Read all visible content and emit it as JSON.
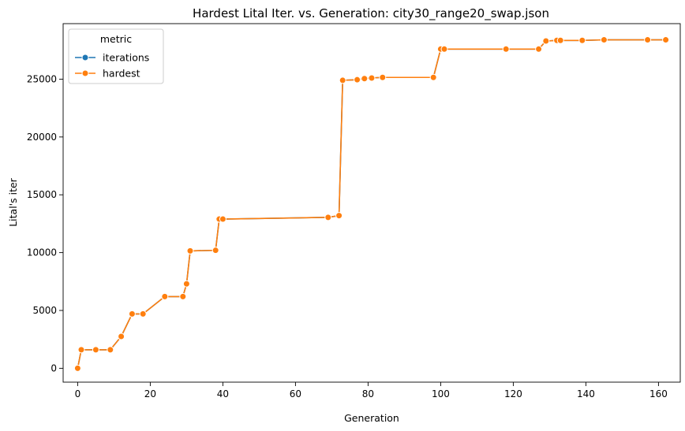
{
  "chart_data": {
    "type": "line",
    "title": "Hardest Lital Iter. vs. Generation: city30_range20_swap.json",
    "xlabel": "Generation",
    "ylabel": "Lital's iter",
    "xlim": [
      -4,
      166
    ],
    "ylim": [
      -1200,
      29800
    ],
    "xticks": [
      0,
      20,
      40,
      60,
      80,
      100,
      120,
      140,
      160
    ],
    "yticks": [
      0,
      5000,
      10000,
      15000,
      20000,
      25000
    ],
    "grid": false,
    "legend": {
      "title": "metric",
      "position": "top-left"
    },
    "series": [
      {
        "name": "iterations",
        "color": "#1f77b4",
        "x": [
          0,
          1,
          5,
          9,
          12,
          15,
          18,
          24,
          29,
          30,
          31,
          38,
          39,
          40,
          69,
          72,
          73,
          77,
          79,
          81,
          84,
          98,
          100,
          101,
          118,
          127,
          129,
          132,
          133,
          139,
          145,
          157,
          162
        ],
        "y": [
          0,
          1600,
          1600,
          1600,
          2750,
          4700,
          4700,
          6200,
          6200,
          7300,
          10150,
          10200,
          12900,
          12900,
          13050,
          13200,
          24900,
          24950,
          25050,
          25100,
          25150,
          25150,
          27600,
          27600,
          27600,
          27600,
          28300,
          28350,
          28350,
          28350,
          28400,
          28400,
          28400
        ]
      },
      {
        "name": "hardest",
        "color": "#ff7f0e",
        "x": [
          0,
          1,
          5,
          9,
          12,
          15,
          18,
          24,
          29,
          30,
          31,
          38,
          39,
          40,
          69,
          72,
          73,
          77,
          79,
          81,
          84,
          98,
          100,
          101,
          118,
          127,
          129,
          132,
          133,
          139,
          145,
          157,
          162
        ],
        "y": [
          0,
          1600,
          1600,
          1600,
          2750,
          4700,
          4700,
          6200,
          6200,
          7300,
          10150,
          10200,
          12900,
          12900,
          13050,
          13200,
          24900,
          24950,
          25050,
          25100,
          25150,
          25150,
          27600,
          27600,
          27600,
          27600,
          28300,
          28350,
          28350,
          28350,
          28400,
          28400,
          28400
        ]
      }
    ]
  }
}
